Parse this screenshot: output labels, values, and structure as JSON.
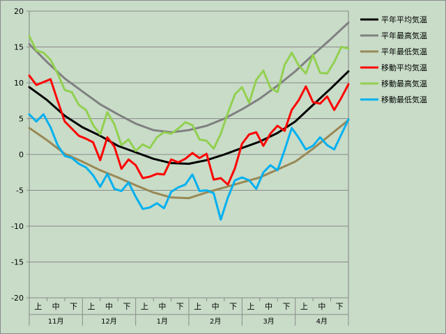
{
  "chart_data": {
    "type": "line",
    "title": "",
    "xlabel": "",
    "ylabel": "",
    "ylim": [
      -20,
      20
    ],
    "yticks": [
      20,
      15,
      10,
      5,
      0,
      -5,
      -10,
      -15,
      -20
    ],
    "grid": "horizontal",
    "legend_position": "top-right",
    "x_range": [
      0,
      180
    ],
    "months": [
      "11月",
      "12月",
      "1月",
      "2月",
      "3月",
      "4月"
    ],
    "dekads": [
      "上",
      "中",
      "下"
    ],
    "series": [
      {
        "name": "平年平均気温",
        "color": "#000000",
        "width": 3,
        "x": [
          0,
          10,
          20,
          30,
          40,
          50,
          60,
          70,
          80,
          90,
          100,
          110,
          120,
          130,
          140,
          150,
          160,
          170,
          180
        ],
        "y": [
          9.4,
          7.6,
          5.4,
          3.8,
          2.6,
          1.2,
          0.3,
          -0.6,
          -1.2,
          -1.3,
          -0.8,
          0.0,
          0.9,
          1.8,
          3.0,
          4.6,
          6.9,
          9.2,
          11.6
        ]
      },
      {
        "name": "平年最高気温",
        "color": "#808080",
        "width": 3,
        "x": [
          0,
          10,
          20,
          30,
          40,
          50,
          60,
          70,
          80,
          90,
          100,
          110,
          120,
          130,
          140,
          150,
          160,
          170,
          180
        ],
        "y": [
          15.4,
          12.9,
          10.6,
          8.8,
          7.0,
          5.6,
          4.3,
          3.4,
          3.1,
          3.4,
          4.0,
          5.0,
          6.3,
          7.8,
          9.6,
          11.6,
          13.9,
          16.1,
          18.4
        ]
      },
      {
        "name": "平年最低気温",
        "color": "#998855",
        "width": 3,
        "x": [
          0,
          10,
          20,
          30,
          40,
          50,
          60,
          70,
          80,
          90,
          100,
          110,
          120,
          130,
          140,
          150,
          160,
          170,
          180
        ],
        "y": [
          3.7,
          2.0,
          0.1,
          -1.0,
          -2.2,
          -3.2,
          -4.3,
          -5.3,
          -6.0,
          -6.1,
          -5.3,
          -4.6,
          -3.9,
          -3.2,
          -2.1,
          -1.0,
          0.8,
          2.8,
          4.8
        ]
      },
      {
        "name": "移動平均気温",
        "color": "#ff0000",
        "width": 3,
        "x": [
          0,
          4,
          8,
          12,
          16,
          20,
          24,
          28,
          32,
          36,
          40,
          44,
          48,
          52,
          56,
          60,
          64,
          68,
          72,
          76,
          80,
          84,
          88,
          92,
          96,
          100,
          104,
          108,
          112,
          116,
          120,
          124,
          128,
          132,
          136,
          140,
          144,
          148,
          152,
          156,
          160,
          164,
          168,
          172,
          176,
          180
        ],
        "y": [
          11,
          9.7,
          10.1,
          10.5,
          7.5,
          4.6,
          3.6,
          2.6,
          2.2,
          1.7,
          -0.8,
          2.4,
          1.1,
          -2,
          -0.7,
          -1.5,
          -3.3,
          -3.1,
          -2.7,
          -2.8,
          -0.7,
          -1.1,
          -0.6,
          0.2,
          -0.5,
          0.1,
          -3.5,
          -3.3,
          -4.2,
          -1.9,
          1.5,
          2.8,
          3.1,
          1.2,
          2.9,
          4.0,
          3.3,
          6.2,
          7.6,
          9.5,
          7.3,
          7.1,
          8.1,
          6.2,
          7.9,
          9.8
        ]
      },
      {
        "name": "移動最高気温",
        "color": "#92d050",
        "width": 3,
        "x": [
          0,
          4,
          8,
          12,
          16,
          20,
          24,
          28,
          32,
          36,
          40,
          44,
          48,
          52,
          56,
          60,
          64,
          68,
          72,
          76,
          80,
          84,
          88,
          92,
          96,
          100,
          104,
          108,
          112,
          116,
          120,
          124,
          128,
          132,
          136,
          140,
          144,
          148,
          152,
          156,
          160,
          164,
          168,
          172,
          176,
          180
        ],
        "y": [
          16.5,
          14.5,
          14.2,
          13.2,
          11.3,
          9.0,
          8.7,
          6.9,
          6.2,
          4.1,
          2.8,
          5.9,
          4.2,
          1.3,
          2.1,
          0.5,
          1.4,
          0.9,
          2.4,
          3.1,
          2.9,
          3.6,
          4.5,
          4.1,
          2.1,
          1.9,
          0.8,
          2.9,
          5.8,
          8.4,
          9.4,
          7.2,
          10.4,
          11.7,
          9.3,
          8.7,
          12.5,
          14.2,
          12.4,
          11.3,
          13.9,
          11.4,
          11.3,
          12.9,
          15.0,
          14.8
        ]
      },
      {
        "name": "移動最低気温",
        "color": "#00b0f0",
        "width": 3,
        "x": [
          0,
          4,
          8,
          12,
          16,
          20,
          24,
          28,
          32,
          36,
          40,
          44,
          48,
          52,
          56,
          60,
          64,
          68,
          72,
          76,
          80,
          84,
          88,
          92,
          96,
          100,
          104,
          108,
          112,
          116,
          120,
          124,
          128,
          132,
          136,
          140,
          144,
          148,
          152,
          156,
          160,
          164,
          168,
          172,
          176,
          180
        ],
        "y": [
          5.6,
          4.6,
          5.6,
          3.8,
          1.3,
          -0.2,
          -0.5,
          -1.3,
          -1.8,
          -2.9,
          -4.5,
          -2.7,
          -4.8,
          -5.1,
          -3.9,
          -5.9,
          -7.6,
          -7.4,
          -6.8,
          -7.5,
          -5.2,
          -4.6,
          -4.2,
          -2.8,
          -5.1,
          -5.0,
          -5.4,
          -9.1,
          -6.0,
          -3.6,
          -3.2,
          -3.6,
          -4.8,
          -2.5,
          -1.5,
          -2.2,
          0.6,
          3.7,
          2.3,
          0.7,
          1.2,
          2.4,
          1.3,
          0.7,
          2.8,
          4.9
        ]
      }
    ]
  }
}
